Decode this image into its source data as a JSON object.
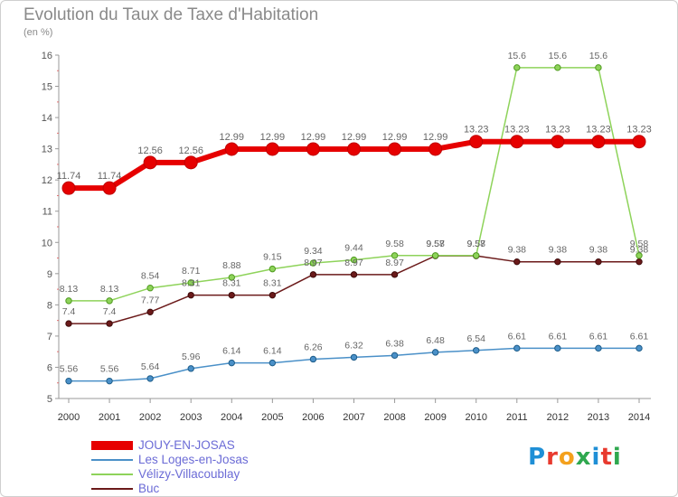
{
  "title": "Evolution du Taux de Taxe d'Habitation",
  "subtitle": "(en %)",
  "logo_text": "Proxiti",
  "logo_colors": [
    "#1f8fd6",
    "#e83a2e",
    "#f4a11d",
    "#2fa84f",
    "#1f8fd6",
    "#e83a2e",
    "#2fa84f"
  ],
  "chart_data": {
    "type": "line",
    "x": [
      "2000",
      "2001",
      "2002",
      "2003",
      "2004",
      "2005",
      "2006",
      "2007",
      "2008",
      "2009",
      "2010",
      "2011",
      "2012",
      "2013",
      "2014"
    ],
    "ylim": [
      5,
      16
    ],
    "yticks": [
      "5",
      "6",
      "7",
      "8",
      "9",
      "10",
      "11",
      "12",
      "13",
      "14",
      "15",
      "16"
    ],
    "grid": false,
    "legend_position": "bottom-left",
    "series": [
      {
        "name": "JOUY-EN-JOSAS",
        "color": "#e60000",
        "values": [
          11.74,
          11.74,
          12.56,
          12.56,
          12.99,
          12.99,
          12.99,
          12.99,
          12.99,
          12.99,
          13.23,
          13.23,
          13.23,
          13.23,
          13.23
        ]
      },
      {
        "name": "Les Loges-en-Josas",
        "color": "#4a90c8",
        "values": [
          5.56,
          5.56,
          5.64,
          5.96,
          6.14,
          6.14,
          6.26,
          6.32,
          6.38,
          6.48,
          6.54,
          6.61,
          6.61,
          6.61,
          6.61
        ]
      },
      {
        "name": "Vélizy-Villacoublay",
        "color": "#8ed35a",
        "values": [
          8.13,
          8.13,
          8.54,
          8.71,
          8.88,
          9.15,
          9.34,
          9.44,
          9.58,
          9.58,
          9.58,
          15.6,
          15.6,
          15.6,
          9.58
        ]
      },
      {
        "name": "Buc",
        "color": "#6b1a1a",
        "values": [
          7.4,
          7.4,
          7.77,
          8.31,
          8.31,
          8.31,
          8.97,
          8.97,
          8.97,
          9.57,
          9.57,
          9.38,
          9.38,
          9.38,
          9.38
        ]
      }
    ]
  }
}
